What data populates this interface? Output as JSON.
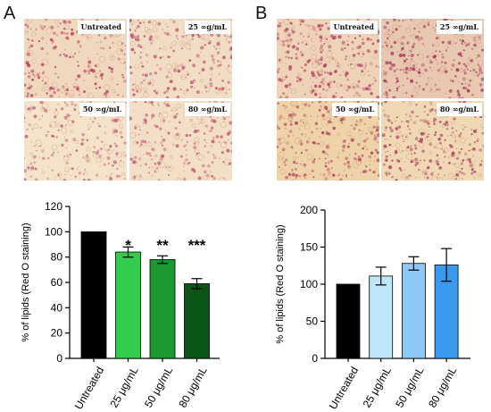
{
  "panels": {
    "a": {
      "label": "A",
      "images": [
        {
          "label": "Untreated",
          "tint": "#f0d8bf",
          "dot": "#b83a5a"
        },
        {
          "label": "25 ∞g/mL",
          "tint": "#f1dcc4",
          "dot": "#bd4466"
        },
        {
          "label": "50 ∞g/mL",
          "tint": "#f4e3c8",
          "dot": "#c25578"
        },
        {
          "label": "80 ∞g/mL",
          "tint": "#f3dec6",
          "dot": "#c0506e"
        }
      ]
    },
    "b": {
      "label": "B",
      "images": [
        {
          "label": "Untreated",
          "tint": "#eed3b8",
          "dot": "#b33c5c"
        },
        {
          "label": "25 ∞g/mL",
          "tint": "#e8c8b0",
          "dot": "#a12f54"
        },
        {
          "label": "50 ∞g/mL",
          "tint": "#eed3a8",
          "dot": "#b23b5a"
        },
        {
          "label": "80 ∞g/mL",
          "tint": "#f0d8b4",
          "dot": "#a8385a"
        }
      ]
    }
  },
  "chart_data": [
    {
      "type": "bar",
      "ylabel": "% of lipids (Red O staining)",
      "categories": [
        "Untreated",
        "25 μg/mL",
        "50 μg/mL",
        "80 μg/mL"
      ],
      "values": [
        100,
        84,
        78,
        59
      ],
      "errors": [
        0,
        4,
        3,
        4
      ],
      "significance": [
        "",
        "*",
        "**",
        "***"
      ],
      "colors": [
        "#000000",
        "#33cc4d",
        "#1a9a2e",
        "#0b5516"
      ],
      "ylim": [
        0,
        120
      ],
      "yticks": [
        0,
        20,
        40,
        60,
        80,
        100,
        120
      ]
    },
    {
      "type": "bar",
      "ylabel": "% of lipids (Red O staining)",
      "categories": [
        "Untreated",
        "25 μg/mL",
        "50 μg/mL",
        "80 μg/mL"
      ],
      "values": [
        100,
        111,
        128,
        126
      ],
      "errors": [
        0,
        12,
        9,
        22
      ],
      "significance": [
        "",
        "",
        "",
        ""
      ],
      "colors": [
        "#000000",
        "#bfe6f8",
        "#8ec8f4",
        "#3a9af0"
      ],
      "ylim": [
        0,
        200
      ],
      "yticks": [
        0,
        50,
        100,
        150,
        200
      ]
    }
  ]
}
